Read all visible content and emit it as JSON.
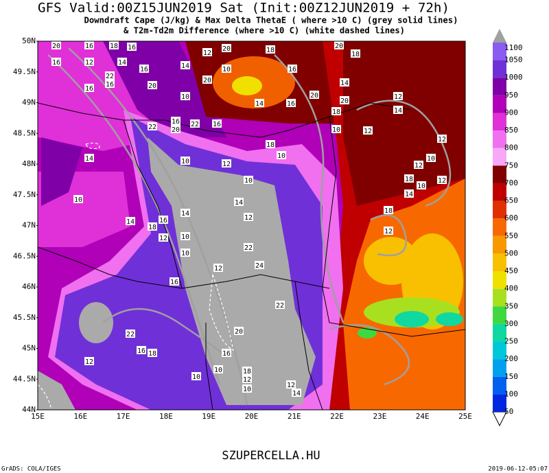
{
  "title": "GFS Valid:00Z15JUN2019 Sat (Init:00Z12JUN2019 + 72h)",
  "subtitle_1": "Downdraft Cape (J/kg) & Max Delta ThetaE ( where >10 C) (grey solid lines)",
  "subtitle_2": "& T2m-Td2m Difference (where >10 C) (white dashed lines)",
  "lat_labels": [
    "50N",
    "49.5N",
    "49N",
    "48.5N",
    "48N",
    "47.5N",
    "47N",
    "46.5N",
    "46N",
    "45.5N",
    "45N",
    "44.5N",
    "44N"
  ],
  "lon_labels": [
    "15E",
    "16E",
    "17E",
    "18E",
    "19E",
    "20E",
    "21E",
    "22E",
    "23E",
    "24E",
    "25E"
  ],
  "colorbar": {
    "ticks": [
      1100,
      1050,
      1000,
      950,
      900,
      850,
      800,
      750,
      700,
      650,
      600,
      550,
      500,
      450,
      400,
      350,
      300,
      250,
      200,
      150,
      100,
      50
    ],
    "colors": [
      "#8a5cf0",
      "#7030d8",
      "#8000a8",
      "#b000b8",
      "#e030d8",
      "#f070f0",
      "#f8a8f8",
      "#800000",
      "#c00000",
      "#e03000",
      "#f86800",
      "#f89800",
      "#f8c000",
      "#f0e000",
      "#a8e020",
      "#40d840",
      "#10d8a0",
      "#00c8d8",
      "#00a0f0",
      "#0060f0",
      "#0028e0",
      "#0000c0"
    ]
  },
  "contour_labels": [
    "20",
    "16",
    "18",
    "16",
    "16",
    "12",
    "14",
    "16",
    "20",
    "18",
    "16",
    "20",
    "18",
    "22",
    "20",
    "14",
    "12",
    "20",
    "16",
    "16",
    "10",
    "10",
    "14",
    "16",
    "20",
    "14",
    "20",
    "18",
    "16",
    "16",
    "22",
    "20",
    "22",
    "18",
    "10",
    "14",
    "10",
    "12",
    "12",
    "14",
    "12",
    "10",
    "12",
    "18",
    "10",
    "14",
    "12",
    "18",
    "12",
    "10",
    "12",
    "10",
    "14",
    "12",
    "14",
    "16",
    "18",
    "12",
    "10",
    "22",
    "24",
    "10",
    "14",
    "10",
    "12",
    "16",
    "22",
    "20",
    "16",
    "22",
    "16",
    "18",
    "12",
    "10",
    "10",
    "18",
    "12",
    "10",
    "12",
    "14"
  ],
  "footer_center": "SZUPERCELLA.HU",
  "footer_left": "GrADS: COLA/IGES",
  "footer_right": "2019-06-12-05:07"
}
